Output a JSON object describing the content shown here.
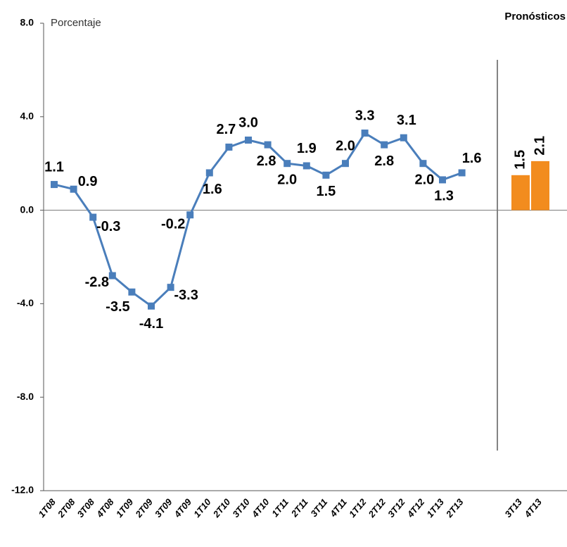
{
  "chart_data": [
    {
      "type": "line",
      "y_label": "Porcentaje",
      "categories": [
        "1T08",
        "2T08",
        "3T08",
        "4T08",
        "1T09",
        "2T09",
        "3T09",
        "4T09",
        "1T10",
        "2T10",
        "3T10",
        "4T10",
        "1T11",
        "2T11",
        "3T11",
        "4T11",
        "1T12",
        "2T12",
        "3T12",
        "4T12",
        "1T13",
        "2T13"
      ],
      "values": [
        1.1,
        0.9,
        -0.3,
        -2.8,
        -3.5,
        -4.1,
        -3.3,
        -0.2,
        1.6,
        2.7,
        3.0,
        2.8,
        2.0,
        1.9,
        1.5,
        2.0,
        3.3,
        2.8,
        3.1,
        2.0,
        1.3,
        1.6
      ],
      "value_labels": [
        "1.1",
        "0.9",
        "-0.3",
        "-2.8",
        "-3.5",
        "-4.1",
        "-3.3",
        "-0.2",
        "1.6",
        "2.7",
        "3.0",
        "2.8",
        "2.0",
        "1.9",
        "1.5",
        "2.0",
        "3.3",
        "2.8",
        "3.1",
        "2.0",
        "1.3",
        "1.6"
      ],
      "color": "#4a7ebb",
      "ylim": [
        -12,
        8
      ],
      "yticks": [
        {
          "value": 8,
          "label": "8.0"
        },
        {
          "value": 4,
          "label": "4.0"
        },
        {
          "value": 0,
          "label": "0.0"
        },
        {
          "value": -4,
          "label": "-4.0"
        },
        {
          "value": -8,
          "label": "-8.0"
        },
        {
          "value": -12,
          "label": "-12.0"
        }
      ]
    },
    {
      "type": "bar",
      "title": "Pronósticos",
      "categories": [
        "3T13",
        "4T13"
      ],
      "values": [
        1.5,
        2.1
      ],
      "value_labels": [
        "1.5",
        "2.1"
      ],
      "color": "#f28c1e",
      "ylim": [
        -12,
        8
      ]
    }
  ]
}
